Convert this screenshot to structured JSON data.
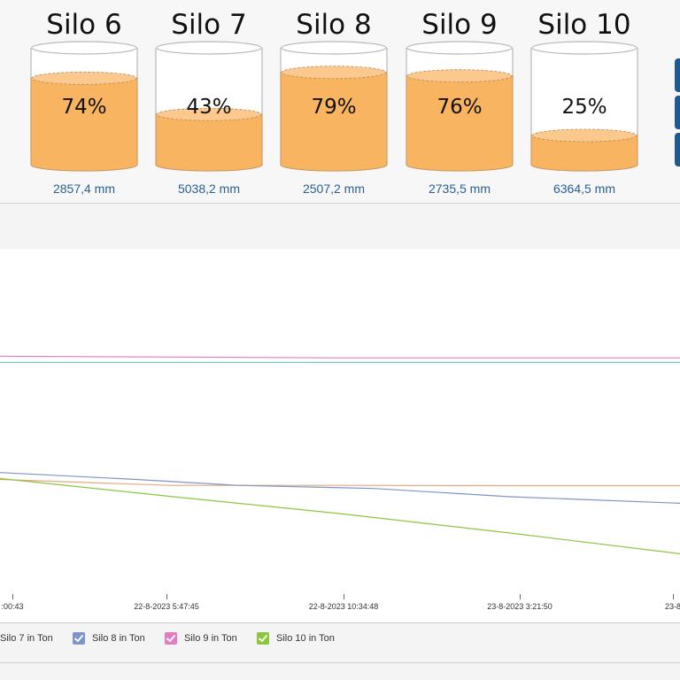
{
  "silos": [
    {
      "name": "Silo 6",
      "percent_label": "74%",
      "fill": 0.74,
      "level": "2857,4 mm"
    },
    {
      "name": "Silo 7",
      "percent_label": "43%",
      "fill": 0.43,
      "level": "5038,2 mm"
    },
    {
      "name": "Silo 8",
      "percent_label": "79%",
      "fill": 0.79,
      "level": "2507,2 mm"
    },
    {
      "name": "Silo 9",
      "percent_label": "76%",
      "fill": 0.76,
      "level": "2735,5 mm"
    },
    {
      "name": "Silo 10",
      "percent_label": "25%",
      "fill": 0.25,
      "level": "6364,5 mm"
    }
  ],
  "colors": {
    "fill": "#f8b461",
    "fill_top": "#fbc98e",
    "vessel_stroke": "#b8b8b8",
    "accent_blue": "#1e5a92"
  },
  "chart": {
    "x_ticks": [
      ":00:43",
      "22-8-2023 5:47:45",
      "22-8-2023 10:34:48",
      "23-8-2023 3:21:50",
      "23-8"
    ],
    "legend": [
      {
        "label": "Silo 7 in Ton",
        "color": "#e8a87c",
        "icon": "checkbox-icon"
      },
      {
        "label": "Silo 8 in Ton",
        "color": "#7f95c8",
        "icon": "checkbox-icon"
      },
      {
        "label": "Silo 9 in Ton",
        "color": "#e27ec0",
        "icon": "checkbox-icon"
      },
      {
        "label": "Silo 10 in Ton",
        "color": "#8cc63f",
        "icon": "checkbox-icon"
      }
    ]
  },
  "chart_data": {
    "type": "line",
    "title": "",
    "xlabel": "",
    "ylabel": "",
    "x_tick_labels": [
      ":00:43",
      "22-8-2023 5:47:45",
      "22-8-2023 10:34:48",
      "23-8-2023 3:21:50",
      "23-8"
    ],
    "grid": false,
    "legend_position": "bottom",
    "series": [
      {
        "name": "Silo 7 in Ton",
        "color": "#e8a87c",
        "x_fraction": [
          0,
          0.25,
          0.5,
          0.75,
          1.0
        ],
        "y_fraction": [
          0.668,
          0.685,
          0.685,
          0.686,
          0.686
        ]
      },
      {
        "name": "Silo 8 in Ton",
        "color": "#7f95c8",
        "x_fraction": [
          0,
          0.2,
          0.35,
          0.55,
          0.75,
          1.0
        ],
        "y_fraction": [
          0.648,
          0.668,
          0.685,
          0.694,
          0.718,
          0.737
        ]
      },
      {
        "name": "Silo 9 in Ton",
        "color": "#e27ec0",
        "x_fraction": [
          0,
          0.5,
          1.0
        ],
        "y_fraction": [
          0.311,
          0.316,
          0.316
        ]
      },
      {
        "name": "",
        "color": "#6cc3b9",
        "x_fraction": [
          0,
          1.0
        ],
        "y_fraction": [
          0.329,
          0.329
        ]
      },
      {
        "name": "Silo 10 in Ton",
        "color": "#8cc63f",
        "x_fraction": [
          0,
          0.25,
          0.5,
          0.75,
          1.0
        ],
        "y_fraction": [
          0.665,
          0.717,
          0.767,
          0.823,
          0.883
        ]
      }
    ]
  }
}
